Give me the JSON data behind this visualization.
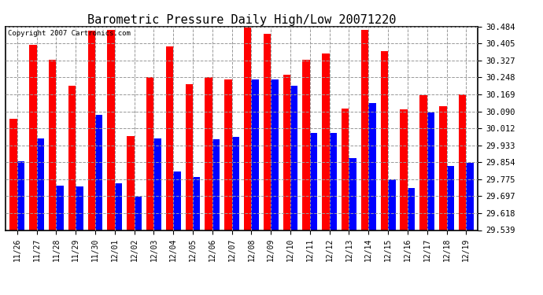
{
  "title": "Barometric Pressure Daily High/Low 20071220",
  "copyright": "Copyright 2007 Cartronics.com",
  "dates": [
    "11/26",
    "11/27",
    "11/28",
    "11/29",
    "11/30",
    "12/01",
    "12/02",
    "12/03",
    "12/04",
    "12/05",
    "12/06",
    "12/07",
    "12/08",
    "12/09",
    "12/10",
    "12/11",
    "12/12",
    "12/13",
    "12/14",
    "12/15",
    "12/16",
    "12/17",
    "12/18",
    "12/19"
  ],
  "highs": [
    30.055,
    30.4,
    30.33,
    30.21,
    30.465,
    30.47,
    29.975,
    30.25,
    30.39,
    30.215,
    30.25,
    30.24,
    30.48,
    30.45,
    30.26,
    30.33,
    30.36,
    30.105,
    30.47,
    30.37,
    30.1,
    30.165,
    30.115,
    30.17
  ],
  "lows": [
    29.86,
    29.965,
    29.745,
    29.74,
    30.075,
    29.755,
    29.695,
    29.965,
    29.81,
    29.785,
    29.96,
    29.97,
    30.24,
    30.24,
    30.21,
    29.99,
    29.99,
    29.875,
    30.13,
    29.775,
    29.735,
    30.085,
    29.835,
    29.85
  ],
  "ylim_min": 29.539,
  "ylim_max": 30.484,
  "yticks": [
    29.539,
    29.618,
    29.697,
    29.775,
    29.854,
    29.933,
    30.012,
    30.09,
    30.169,
    30.248,
    30.327,
    30.405,
    30.484
  ],
  "bar_color_high": "#ff0000",
  "bar_color_low": "#0000ff",
  "bg_color": "#ffffff",
  "grid_color": "#999999",
  "title_fontsize": 11,
  "copyright_fontsize": 6.5,
  "bar_width": 0.38
}
